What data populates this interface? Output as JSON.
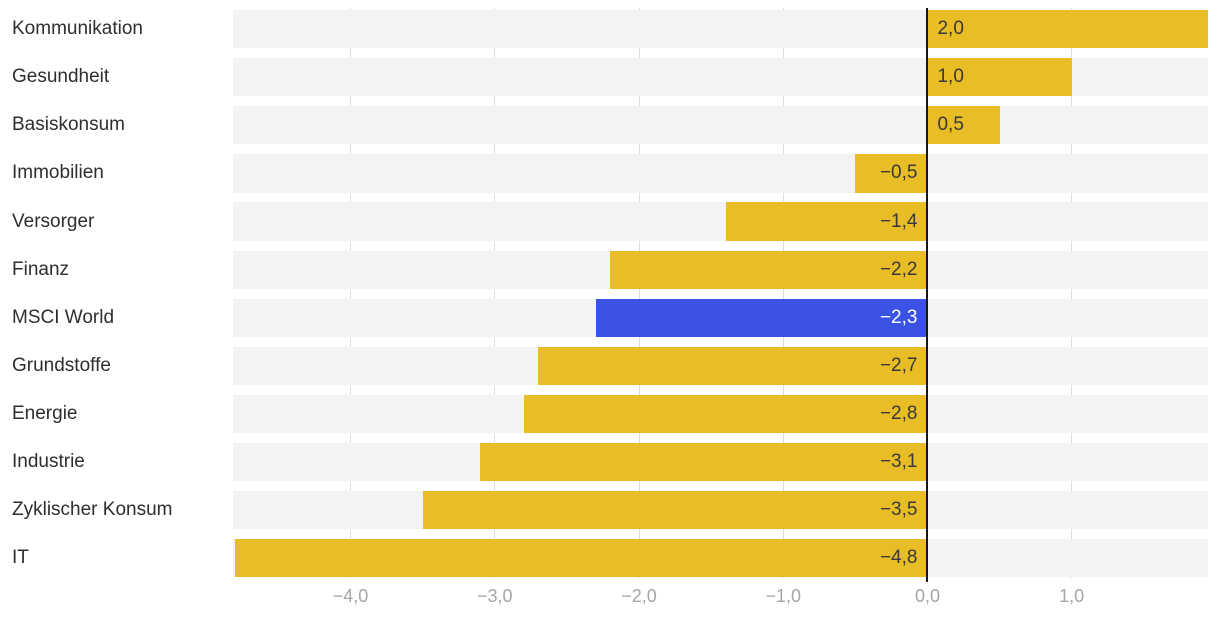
{
  "chart_data": {
    "type": "bar",
    "orientation": "horizontal",
    "title": "",
    "xlabel": "",
    "ylabel": "",
    "categories": [
      "Kommunikation",
      "Gesundheit",
      "Basiskonsum",
      "Immobilien",
      "Versorger",
      "Finanz",
      "MSCI World",
      "Grundstoffe",
      "Energie",
      "Industrie",
      "Zyklischer Konsum",
      "IT"
    ],
    "values": [
      2.0,
      1.0,
      0.5,
      -0.5,
      -1.4,
      -2.2,
      -2.3,
      -2.7,
      -2.8,
      -3.1,
      -3.5,
      -4.8
    ],
    "value_labels": [
      "2,0",
      "1,0",
      "0,5",
      "−0,5",
      "−1,4",
      "−2,2",
      "−2,3",
      "−2,7",
      "−2,8",
      "−3,1",
      "−3,5",
      "−4,8"
    ],
    "highlight_category": "MSCI World",
    "highlight_index": 6,
    "x_ticks": [
      -4,
      -3,
      -2,
      -1,
      0,
      1
    ],
    "x_tick_labels": [
      "−4,0",
      "−3,0",
      "−2,0",
      "−1,0",
      "0,0",
      "1,0"
    ],
    "xlim": [
      -4.815,
      1.945
    ],
    "grid": true,
    "legend": "none",
    "colors": {
      "bar": "#E9BD25",
      "highlight_bar": "#3B53E4",
      "track": "#F3F3F3",
      "gridline": "#DDDDDD",
      "zero_line": "#161616",
      "category_text": "#2E2E2E",
      "value_text_on_bar": "#383838",
      "value_text_on_highlight": "#FFFFFF",
      "tick_text": "#A6A6A6",
      "background": "#FFFFFF"
    }
  }
}
